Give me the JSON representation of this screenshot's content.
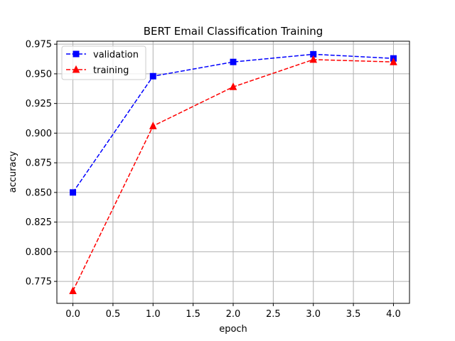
{
  "chart_data": {
    "type": "line",
    "title": "BERT Email Classification Training",
    "xlabel": "epoch",
    "ylabel": "accuracy",
    "x": [
      0,
      1,
      2,
      3,
      4
    ],
    "xlim": [
      -0.2,
      4.2
    ],
    "ylim": [
      0.7565,
      0.9775
    ],
    "xticks": [
      0.0,
      0.5,
      1.0,
      1.5,
      2.0,
      2.5,
      3.0,
      3.5,
      4.0
    ],
    "xtick_labels": [
      "0.0",
      "0.5",
      "1.0",
      "1.5",
      "2.0",
      "2.5",
      "3.0",
      "3.5",
      "4.0"
    ],
    "yticks": [
      0.775,
      0.8,
      0.825,
      0.85,
      0.875,
      0.9,
      0.925,
      0.95,
      0.975
    ],
    "ytick_labels": [
      "0.775",
      "0.800",
      "0.825",
      "0.850",
      "0.875",
      "0.900",
      "0.925",
      "0.950",
      "0.975"
    ],
    "grid": true,
    "legend_position": "top-left",
    "series": [
      {
        "name": "validation",
        "values": [
          0.85,
          0.948,
          0.96,
          0.9665,
          0.963
        ],
        "color": "#0000ff",
        "marker": "square",
        "linestyle": "dashed"
      },
      {
        "name": "training",
        "values": [
          0.767,
          0.906,
          0.939,
          0.962,
          0.96
        ],
        "color": "#ff0000",
        "marker": "triangle",
        "linestyle": "dashed"
      }
    ]
  }
}
